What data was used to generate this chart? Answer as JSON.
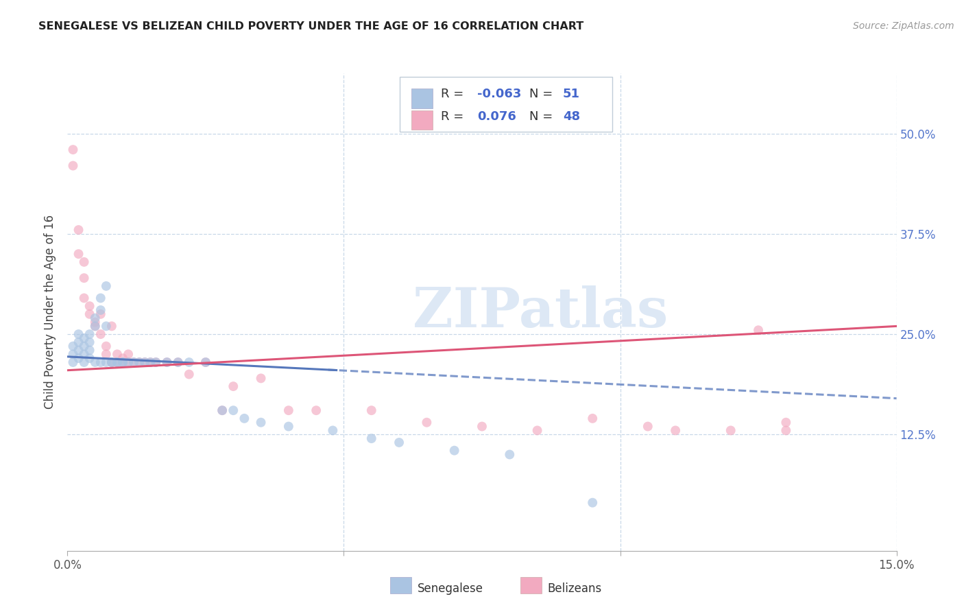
{
  "title": "SENEGALESE VS BELIZEAN CHILD POVERTY UNDER THE AGE OF 16 CORRELATION CHART",
  "source": "Source: ZipAtlas.com",
  "ylabel": "Child Poverty Under the Age of 16",
  "xlim": [
    0.0,
    0.15
  ],
  "ylim": [
    -0.02,
    0.575
  ],
  "xticks": [
    0.0,
    0.05,
    0.1,
    0.15
  ],
  "xticklabels": [
    "0.0%",
    "",
    "",
    "15.0%"
  ],
  "yticks": [
    0.0,
    0.125,
    0.25,
    0.375,
    0.5
  ],
  "yticklabels": [
    "",
    "12.5%",
    "25.0%",
    "37.5%",
    "50.0%"
  ],
  "background_color": "#ffffff",
  "grid_color": "#c8d8e8",
  "watermark": "ZIPatlas",
  "senegalese_color": "#aac4e2",
  "belizean_color": "#f2aac0",
  "senegalese_line_color": "#5577bb",
  "belizean_line_color": "#dd5577",
  "dot_size": 100,
  "dot_alpha": 0.65,
  "senegalese_x": [
    0.001,
    0.001,
    0.001,
    0.002,
    0.002,
    0.002,
    0.002,
    0.003,
    0.003,
    0.003,
    0.003,
    0.004,
    0.004,
    0.004,
    0.004,
    0.005,
    0.005,
    0.005,
    0.006,
    0.006,
    0.006,
    0.007,
    0.007,
    0.007,
    0.008,
    0.008,
    0.009,
    0.009,
    0.01,
    0.01,
    0.011,
    0.012,
    0.013,
    0.014,
    0.015,
    0.016,
    0.018,
    0.02,
    0.022,
    0.025,
    0.028,
    0.03,
    0.032,
    0.035,
    0.04,
    0.048,
    0.055,
    0.06,
    0.07,
    0.08,
    0.095
  ],
  "senegalese_y": [
    0.215,
    0.225,
    0.235,
    0.22,
    0.23,
    0.24,
    0.25,
    0.215,
    0.225,
    0.235,
    0.245,
    0.22,
    0.23,
    0.24,
    0.25,
    0.215,
    0.26,
    0.27,
    0.215,
    0.28,
    0.295,
    0.215,
    0.26,
    0.31,
    0.215,
    0.215,
    0.215,
    0.215,
    0.215,
    0.215,
    0.215,
    0.215,
    0.215,
    0.215,
    0.215,
    0.215,
    0.215,
    0.215,
    0.215,
    0.215,
    0.155,
    0.155,
    0.145,
    0.14,
    0.135,
    0.13,
    0.12,
    0.115,
    0.105,
    0.1,
    0.04
  ],
  "belizean_x": [
    0.001,
    0.001,
    0.002,
    0.002,
    0.003,
    0.003,
    0.003,
    0.004,
    0.004,
    0.005,
    0.005,
    0.006,
    0.006,
    0.007,
    0.007,
    0.008,
    0.008,
    0.009,
    0.009,
    0.01,
    0.01,
    0.011,
    0.011,
    0.012,
    0.013,
    0.014,
    0.015,
    0.016,
    0.018,
    0.02,
    0.022,
    0.025,
    0.028,
    0.03,
    0.035,
    0.04,
    0.045,
    0.055,
    0.065,
    0.075,
    0.085,
    0.095,
    0.105,
    0.11,
    0.12,
    0.13,
    0.13,
    0.125
  ],
  "belizean_y": [
    0.48,
    0.46,
    0.38,
    0.35,
    0.34,
    0.32,
    0.295,
    0.285,
    0.275,
    0.265,
    0.26,
    0.25,
    0.275,
    0.235,
    0.225,
    0.26,
    0.215,
    0.215,
    0.225,
    0.22,
    0.215,
    0.215,
    0.225,
    0.215,
    0.215,
    0.215,
    0.215,
    0.215,
    0.215,
    0.215,
    0.2,
    0.215,
    0.155,
    0.185,
    0.195,
    0.155,
    0.155,
    0.155,
    0.14,
    0.135,
    0.13,
    0.145,
    0.135,
    0.13,
    0.13,
    0.13,
    0.14,
    0.255
  ],
  "trend_sen_x0": 0.0,
  "trend_sen_y0": 0.222,
  "trend_sen_x1": 0.15,
  "trend_sen_y1": 0.17,
  "trend_sen_solid_end": 0.048,
  "trend_bel_x0": 0.0,
  "trend_bel_y0": 0.205,
  "trend_bel_x1": 0.15,
  "trend_bel_y1": 0.26
}
